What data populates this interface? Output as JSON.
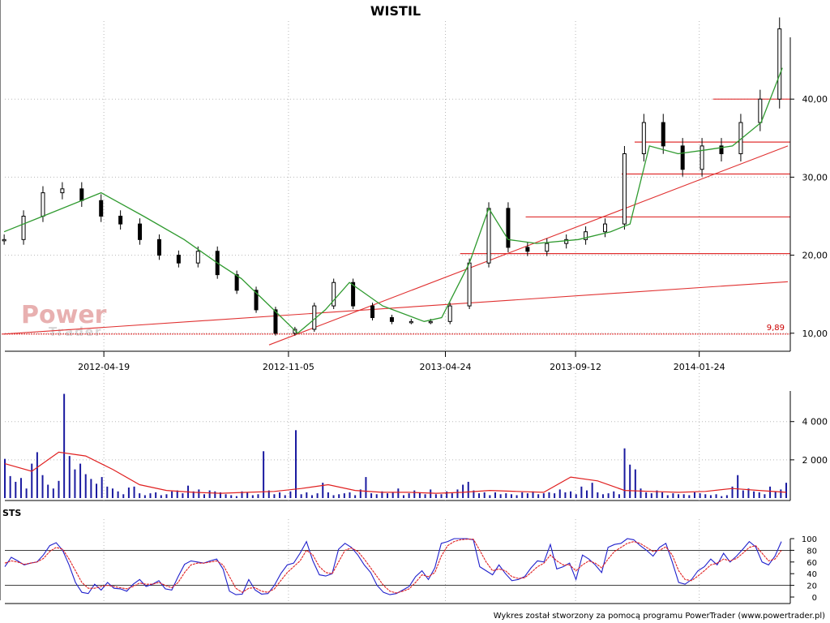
{
  "chart_data": [
    {
      "type": "candlestick",
      "title": "WISTIL",
      "x_ticks": [
        "2012-04-19",
        "2012-11-05",
        "2013-04-24",
        "2013-09-12",
        "2014-01-24"
      ],
      "x_range": [
        "2012-01-01",
        "2014-04-30"
      ],
      "ylim": [
        8,
        50
      ],
      "y_ticks": [
        "10,00",
        "20,00",
        "30,00",
        "40,00"
      ],
      "y_tick_values": [
        10,
        20,
        30,
        40
      ],
      "grid": true,
      "price": {
        "dates": [
          "2012-01-02",
          "2012-01-23",
          "2012-02-13",
          "2012-03-05",
          "2012-03-26",
          "2012-04-16",
          "2012-05-07",
          "2012-05-28",
          "2012-06-18",
          "2012-07-09",
          "2012-07-30",
          "2012-08-20",
          "2012-09-10",
          "2012-10-01",
          "2012-10-22",
          "2012-11-12",
          "2012-12-03",
          "2012-12-24",
          "2013-01-14",
          "2013-02-04",
          "2013-02-25",
          "2013-03-18",
          "2013-04-08",
          "2013-04-29",
          "2013-05-20",
          "2013-06-10",
          "2013-07-01",
          "2013-07-22",
          "2013-08-12",
          "2013-09-02",
          "2013-09-23",
          "2013-10-14",
          "2013-11-04",
          "2013-11-25",
          "2013-12-16",
          "2014-01-06",
          "2014-01-27",
          "2014-02-17",
          "2014-03-10",
          "2014-03-31",
          "2014-04-21"
        ],
        "close": [
          22,
          25,
          28,
          28.5,
          27,
          25,
          24,
          22,
          20,
          19,
          20.5,
          17.5,
          15.5,
          13,
          10,
          10.5,
          13.5,
          16.5,
          13.5,
          12,
          11.5,
          11.5,
          11.5,
          13.5,
          19,
          26,
          21,
          20.5,
          21.5,
          22,
          23,
          24,
          33,
          37,
          34,
          31,
          34,
          33,
          37,
          40,
          49
        ]
      },
      "moving_average": {
        "dates": [
          "2012-01-02",
          "2012-02-13",
          "2012-04-16",
          "2012-06-01",
          "2012-07-15",
          "2012-08-20",
          "2012-09-15",
          "2012-10-20",
          "2012-11-15",
          "2012-12-15",
          "2013-01-10",
          "2013-02-15",
          "2013-04-01",
          "2013-04-20",
          "2013-05-20",
          "2013-06-10",
          "2013-07-01",
          "2013-08-01",
          "2013-09-15",
          "2013-10-20",
          "2013-11-10",
          "2013-12-01",
          "2014-01-01",
          "2014-02-01",
          "2014-03-01",
          "2014-04-01",
          "2014-04-24"
        ],
        "values": [
          23,
          25,
          28,
          25,
          22,
          19,
          17,
          13,
          10,
          13,
          16.5,
          13.5,
          11.5,
          12,
          19,
          26,
          22,
          21.5,
          22,
          23,
          24,
          34,
          33,
          33.5,
          34,
          37,
          44
        ]
      },
      "horizontal_levels": [
        {
          "value": 9.89,
          "start": "2012-01-01",
          "label": "9,89",
          "dotted": true
        },
        {
          "value": 20.2,
          "start": "2013-05-10"
        },
        {
          "value": 24.9,
          "start": "2013-07-20"
        },
        {
          "value": 30.4,
          "start": "2013-11-01"
        },
        {
          "value": 34.5,
          "start": "2013-11-15"
        },
        {
          "value": 40.0,
          "start": "2014-02-08"
        }
      ],
      "trend_lines": [
        {
          "from": [
            "2012-10-15",
            8.5
          ],
          "to": [
            "2014-04-30",
            34.0
          ]
        },
        {
          "from": [
            "2012-01-01",
            9.89
          ],
          "to": [
            "2014-04-30",
            16.6
          ]
        }
      ]
    },
    {
      "type": "bar",
      "y_ticks": [
        "2 000",
        "4 000"
      ],
      "y_tick_values": [
        2000,
        4000
      ],
      "ylim": [
        0,
        5600
      ],
      "grid": true,
      "volume": [
        2050,
        1150,
        850,
        1050,
        500,
        1800,
        2400,
        1200,
        700,
        500,
        900,
        5450,
        2200,
        1500,
        1800,
        1250,
        1000,
        750,
        1100,
        600,
        500,
        350,
        200,
        550,
        600,
        250,
        150,
        250,
        300,
        150,
        200,
        350,
        400,
        250,
        650,
        350,
        450,
        200,
        400,
        350,
        300,
        200,
        150,
        100,
        350,
        300,
        150,
        200,
        2450,
        400,
        200,
        300,
        150,
        350,
        3550,
        200,
        300,
        150,
        250,
        800,
        300,
        150,
        200,
        250,
        300,
        150,
        450,
        1100,
        250,
        200,
        350,
        250,
        300,
        500,
        150,
        250,
        400,
        300,
        200,
        450,
        200,
        200,
        350,
        250,
        450,
        700,
        850,
        400,
        250,
        300,
        150,
        300,
        200,
        250,
        200,
        150,
        300,
        250,
        350,
        200,
        250,
        300,
        250,
        450,
        300,
        350,
        200,
        600,
        400,
        800,
        300,
        200,
        250,
        350,
        200,
        2600,
        1750,
        1500,
        500,
        300,
        250,
        400,
        300,
        150,
        250,
        200,
        200,
        150,
        300,
        250,
        200,
        150,
        200,
        100,
        150,
        600,
        1200,
        400,
        500,
        350,
        300,
        200,
        600,
        350,
        450,
        800
      ],
      "volume_average": [
        1800,
        1400,
        2400,
        2200,
        1500,
        700,
        400,
        300,
        250,
        300,
        350,
        500,
        700,
        400,
        300,
        300,
        250,
        300,
        400,
        350,
        300,
        1100,
        900,
        400,
        350,
        300,
        350,
        500,
        400,
        300
      ]
    },
    {
      "type": "line",
      "panel_label": "STS",
      "ylim": [
        0,
        100
      ],
      "y_ticks": [
        "0",
        "20",
        "40",
        "60",
        "80",
        "100"
      ],
      "y_tick_values": [
        0,
        20,
        40,
        60,
        80,
        100
      ],
      "reference_levels": [
        20,
        80
      ],
      "series": [
        {
          "values": [
            52,
            68,
            62,
            55,
            58,
            60,
            72,
            88,
            93,
            80,
            55,
            25,
            8,
            6,
            22,
            12,
            25,
            15,
            14,
            10,
            22,
            30,
            18,
            22,
            28,
            14,
            12,
            35,
            56,
            62,
            60,
            58,
            62,
            65,
            48,
            10,
            4,
            5,
            30,
            12,
            5,
            6,
            20,
            40,
            55,
            58,
            75,
            95,
            62,
            38,
            36,
            40,
            82,
            92,
            85,
            72,
            55,
            42,
            20,
            8,
            4,
            6,
            12,
            18,
            35,
            45,
            30,
            50,
            92,
            95,
            100,
            100,
            100,
            98,
            52,
            45,
            38,
            55,
            40,
            28,
            30,
            35,
            50,
            62,
            60,
            90,
            48,
            52,
            58,
            30,
            72,
            65,
            55,
            42,
            85,
            90,
            92,
            100,
            98,
            88,
            80,
            70,
            85,
            92,
            60,
            25,
            22,
            30,
            45,
            52,
            65,
            55,
            75,
            60,
            70,
            82,
            95,
            86,
            60,
            55,
            70,
            95
          ]
        },
        {
          "values": [
            58,
            62,
            60,
            56,
            58,
            60,
            66,
            78,
            85,
            82,
            65,
            45,
            25,
            15,
            15,
            18,
            20,
            18,
            16,
            14,
            18,
            24,
            22,
            22,
            25,
            20,
            16,
            25,
            42,
            55,
            58,
            58,
            60,
            62,
            55,
            35,
            15,
            8,
            15,
            16,
            10,
            8,
            14,
            28,
            42,
            52,
            62,
            80,
            72,
            52,
            42,
            40,
            60,
            80,
            84,
            78,
            65,
            50,
            35,
            20,
            10,
            7,
            10,
            14,
            25,
            38,
            35,
            42,
            70,
            88,
            95,
            98,
            99,
            99,
            80,
            60,
            45,
            48,
            45,
            35,
            32,
            33,
            42,
            52,
            58,
            72,
            62,
            55,
            55,
            45,
            55,
            62,
            58,
            50,
            65,
            78,
            85,
            92,
            95,
            92,
            85,
            78,
            80,
            86,
            72,
            45,
            30,
            28,
            36,
            45,
            55,
            58,
            65,
            62,
            66,
            75,
            85,
            88,
            75,
            62,
            65,
            80
          ]
        }
      ]
    }
  ],
  "footer": "Wykres został stworzony za pomocą programu PowerTrader (www.powertrader.pl)",
  "watermark": {
    "word1": "Power",
    "word2": "Trader"
  },
  "colors": {
    "ma": "#2f9a2f",
    "level": "#e03030",
    "volume_bar": "#1a1aa0",
    "volume_ma": "#e02020",
    "sts_primary": "#2020cc",
    "sts_signal": "#e02020",
    "grid": "#b8b8b8"
  }
}
